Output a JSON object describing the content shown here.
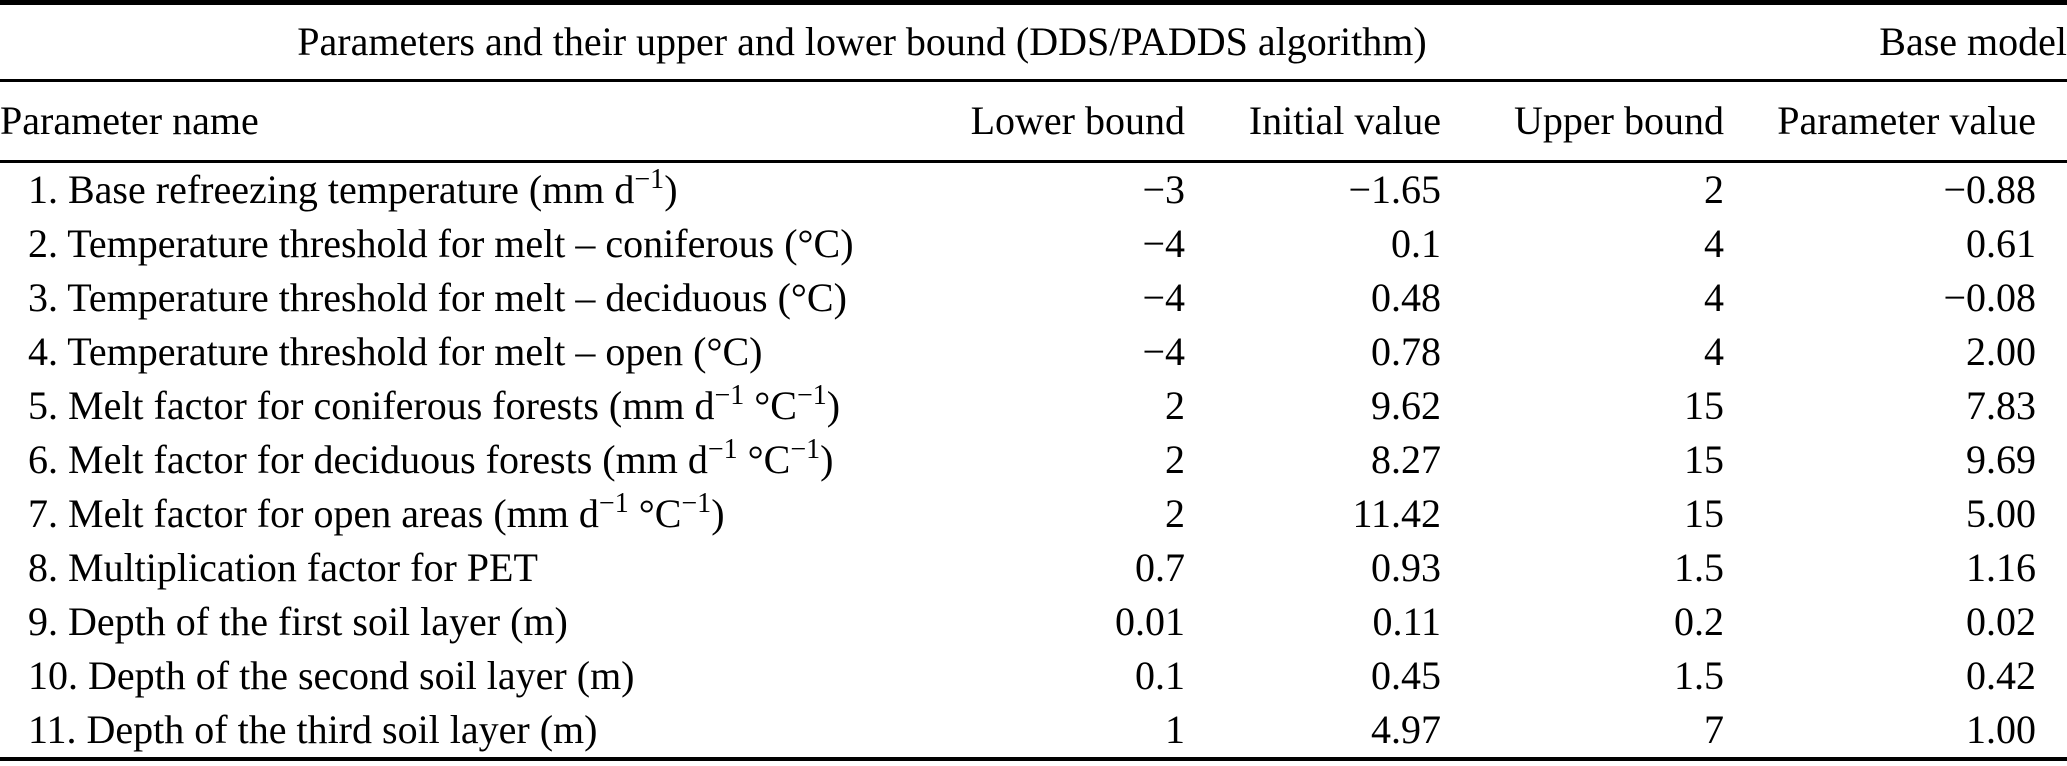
{
  "table": {
    "title": "Parameters and their upper and lower bound (DDS/PADDS algorithm)",
    "base_model_label": "Base model",
    "columns": [
      "Parameter name",
      "Lower bound",
      "Initial value",
      "Upper bound",
      "Parameter value"
    ],
    "rows": [
      {
        "name_segments": [
          {
            "text": "1. Base refreezing temperature (mm d"
          },
          {
            "text": "−1",
            "sup": true
          },
          {
            "text": ")"
          }
        ],
        "lower": "−3",
        "initial": "−1.65",
        "upper": "2",
        "value": "−0.88"
      },
      {
        "name_segments": [
          {
            "text": "2. Temperature threshold for melt – coniferous (°C)"
          }
        ],
        "lower": "−4",
        "initial": "0.1",
        "upper": "4",
        "value": "0.61"
      },
      {
        "name_segments": [
          {
            "text": "3. Temperature threshold for melt – deciduous (°C)"
          }
        ],
        "lower": "−4",
        "initial": "0.48",
        "upper": "4",
        "value": "−0.08"
      },
      {
        "name_segments": [
          {
            "text": "4. Temperature threshold for melt – open (°C)"
          }
        ],
        "lower": "−4",
        "initial": "0.78",
        "upper": "4",
        "value": "2.00"
      },
      {
        "name_segments": [
          {
            "text": "5. Melt factor for coniferous forests (mm d"
          },
          {
            "text": "−1",
            "sup": true
          },
          {
            "text": " °C"
          },
          {
            "text": "−1",
            "sup": true
          },
          {
            "text": ")"
          }
        ],
        "lower": "2",
        "initial": "9.62",
        "upper": "15",
        "value": "7.83"
      },
      {
        "name_segments": [
          {
            "text": "6. Melt factor for deciduous forests (mm d"
          },
          {
            "text": "−1",
            "sup": true
          },
          {
            "text": " °C"
          },
          {
            "text": "−1",
            "sup": true
          },
          {
            "text": ")"
          }
        ],
        "lower": "2",
        "initial": "8.27",
        "upper": "15",
        "value": "9.69"
      },
      {
        "name_segments": [
          {
            "text": "7. Melt factor for open areas (mm d"
          },
          {
            "text": "−1",
            "sup": true
          },
          {
            "text": " °C"
          },
          {
            "text": "−1",
            "sup": true
          },
          {
            "text": ")"
          }
        ],
        "lower": "2",
        "initial": "11.42",
        "upper": "15",
        "value": "5.00"
      },
      {
        "name_segments": [
          {
            "text": "8. Multiplication factor for PET"
          }
        ],
        "lower": "0.7",
        "initial": "0.93",
        "upper": "1.5",
        "value": "1.16"
      },
      {
        "name_segments": [
          {
            "text": "9. Depth of the first soil layer (m)"
          }
        ],
        "lower": "0.01",
        "initial": "0.11",
        "upper": "0.2",
        "value": "0.02"
      },
      {
        "name_segments": [
          {
            "text": "10. Depth of the second soil layer (m)"
          }
        ],
        "lower": "0.1",
        "initial": "0.45",
        "upper": "1.5",
        "value": "0.42"
      },
      {
        "name_segments": [
          {
            "text": "11. Depth of the third soil layer (m)"
          }
        ],
        "lower": "1",
        "initial": "4.97",
        "upper": "7",
        "value": "1.00"
      }
    ],
    "colors": {
      "text": "#000000",
      "rule": "#000000",
      "background": "#ffffff"
    }
  }
}
